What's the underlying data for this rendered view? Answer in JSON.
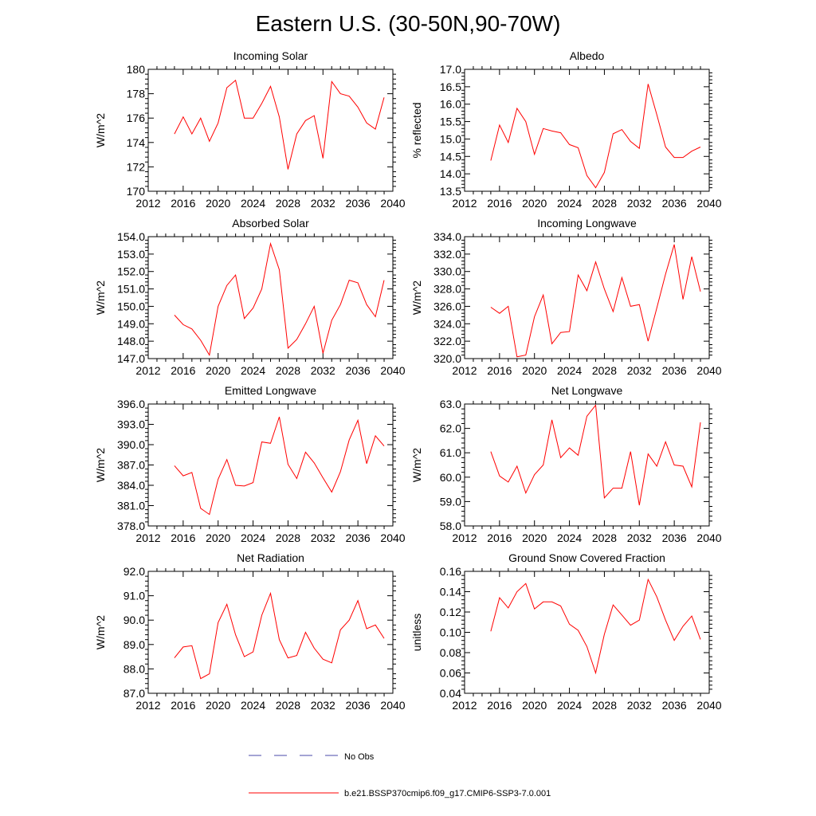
{
  "title": "Eastern U.S. (30-50N,90-70W)",
  "colors": {
    "series": "#ff0000",
    "obs": "#4a4aaa",
    "axis": "#000000"
  },
  "legend": {
    "obs_label": "No Obs",
    "model_label": "b.e21.BSSP370cmip6.f09_g17.CMIP6-SSP3-7.0.001"
  },
  "chart_data": [
    {
      "type": "line",
      "title": "Incoming Solar",
      "ylabel": "W/m^2",
      "xlabel": "",
      "xlim": [
        2012,
        2040
      ],
      "ylim": [
        170,
        180
      ],
      "xticks": [
        2012,
        2016,
        2020,
        2024,
        2028,
        2032,
        2036,
        2040
      ],
      "xtick_labels": [
        "2012",
        "2016",
        "2020",
        "2024",
        "2028",
        "2032",
        "2036",
        "2040"
      ],
      "yticks": [
        170,
        172,
        174,
        176,
        178,
        180
      ],
      "ytick_labels": [
        "170",
        "172",
        "174",
        "176",
        "178",
        "180"
      ],
      "x": [
        2015,
        2016,
        2017,
        2018,
        2019,
        2020,
        2021,
        2022,
        2023,
        2024,
        2025,
        2026,
        2027,
        2028,
        2029,
        2030,
        2031,
        2032,
        2033,
        2034,
        2035,
        2036,
        2037,
        2038,
        2039
      ],
      "series": [
        {
          "name": "b.e21.BSSP370cmip6.f09_g17.CMIP6-SSP3-7.0.001",
          "values": [
            174.7,
            176.1,
            174.7,
            176.0,
            174.1,
            175.6,
            178.5,
            179.1,
            176.0,
            176.0,
            177.2,
            178.6,
            176.1,
            171.8,
            174.7,
            175.8,
            176.2,
            172.7,
            179.0,
            178.0,
            177.8,
            176.9,
            175.6,
            175.1,
            177.7
          ]
        }
      ]
    },
    {
      "type": "line",
      "title": "Albedo",
      "ylabel": "% reflected",
      "xlabel": "",
      "xlim": [
        2012,
        2040
      ],
      "ylim": [
        13.5,
        17.0
      ],
      "xticks": [
        2012,
        2016,
        2020,
        2024,
        2028,
        2032,
        2036,
        2040
      ],
      "xtick_labels": [
        "2012",
        "2016",
        "2020",
        "2024",
        "2028",
        "2032",
        "2036",
        "2040"
      ],
      "yticks": [
        13.5,
        14.0,
        14.5,
        15.0,
        15.5,
        16.0,
        16.5,
        17.0
      ],
      "ytick_labels": [
        "13.5",
        "14.0",
        "14.5",
        "15.0",
        "15.5",
        "16.0",
        "16.5",
        "17.0"
      ],
      "x": [
        2015,
        2016,
        2017,
        2018,
        2019,
        2020,
        2021,
        2022,
        2023,
        2024,
        2025,
        2026,
        2027,
        2028,
        2029,
        2030,
        2031,
        2032,
        2033,
        2034,
        2035,
        2036,
        2037,
        2038,
        2039
      ],
      "series": [
        {
          "name": "b.e21.BSSP370cmip6.f09_g17.CMIP6-SSP3-7.0.001",
          "values": [
            14.38,
            15.4,
            14.9,
            15.88,
            15.5,
            14.56,
            15.3,
            15.23,
            15.18,
            14.84,
            14.75,
            13.95,
            13.6,
            14.04,
            15.15,
            15.27,
            14.93,
            14.73,
            16.58,
            15.7,
            14.77,
            14.47,
            14.47,
            14.65,
            14.77
          ]
        }
      ]
    },
    {
      "type": "line",
      "title": "Absorbed Solar",
      "ylabel": "W/m^2",
      "xlabel": "",
      "xlim": [
        2012,
        2040
      ],
      "ylim": [
        147.0,
        154.0
      ],
      "xticks": [
        2012,
        2016,
        2020,
        2024,
        2028,
        2032,
        2036,
        2040
      ],
      "xtick_labels": [
        "2012",
        "2016",
        "2020",
        "2024",
        "2028",
        "2032",
        "2036",
        "2040"
      ],
      "yticks": [
        147,
        148,
        149,
        150,
        151,
        152,
        153,
        154
      ],
      "ytick_labels": [
        "147.0",
        "148.0",
        "149.0",
        "150.0",
        "151.0",
        "152.0",
        "153.0",
        "154.0"
      ],
      "x": [
        2015,
        2016,
        2017,
        2018,
        2019,
        2020,
        2021,
        2022,
        2023,
        2024,
        2025,
        2026,
        2027,
        2028,
        2029,
        2030,
        2031,
        2032,
        2033,
        2034,
        2035,
        2036,
        2037,
        2038,
        2039
      ],
      "series": [
        {
          "name": "b.e21.BSSP370cmip6.f09_g17.CMIP6-SSP3-7.0.001",
          "values": [
            149.5,
            148.95,
            148.7,
            148.05,
            147.2,
            150.0,
            151.2,
            151.8,
            149.3,
            149.9,
            151.0,
            153.6,
            152.1,
            147.6,
            148.1,
            149.0,
            150.0,
            147.3,
            149.2,
            150.1,
            151.5,
            151.35,
            150.1,
            149.4,
            151.5
          ]
        }
      ]
    },
    {
      "type": "line",
      "title": "Incoming Longwave",
      "ylabel": "W/m^2",
      "xlabel": "",
      "xlim": [
        2012,
        2040
      ],
      "ylim": [
        320.0,
        334.0
      ],
      "xticks": [
        2012,
        2016,
        2020,
        2024,
        2028,
        2032,
        2036,
        2040
      ],
      "xtick_labels": [
        "2012",
        "2016",
        "2020",
        "2024",
        "2028",
        "2032",
        "2036",
        "2040"
      ],
      "yticks": [
        320,
        322,
        324,
        326,
        328,
        330,
        332,
        334
      ],
      "ytick_labels": [
        "320.0",
        "322.0",
        "324.0",
        "326.0",
        "328.0",
        "330.0",
        "332.0",
        "334.0"
      ],
      "x": [
        2015,
        2016,
        2017,
        2018,
        2019,
        2020,
        2021,
        2022,
        2023,
        2024,
        2025,
        2026,
        2027,
        2028,
        2029,
        2030,
        2031,
        2032,
        2033,
        2034,
        2035,
        2036,
        2037,
        2038,
        2039
      ],
      "series": [
        {
          "name": "b.e21.BSSP370cmip6.f09_g17.CMIP6-SSP3-7.0.001",
          "values": [
            325.9,
            325.2,
            326.0,
            320.2,
            320.4,
            324.8,
            327.3,
            321.7,
            323.0,
            323.1,
            329.6,
            327.8,
            331.1,
            328.0,
            325.4,
            329.3,
            326.0,
            326.2,
            322.0,
            325.8,
            329.7,
            333.1,
            326.8,
            331.7,
            327.7
          ]
        }
      ]
    },
    {
      "type": "line",
      "title": "Emitted Longwave",
      "ylabel": "W/m^2",
      "xlabel": "",
      "xlim": [
        2012,
        2040
      ],
      "ylim": [
        378.0,
        396.0
      ],
      "xticks": [
        2012,
        2016,
        2020,
        2024,
        2028,
        2032,
        2036,
        2040
      ],
      "xtick_labels": [
        "2012",
        "2016",
        "2020",
        "2024",
        "2028",
        "2032",
        "2036",
        "2040"
      ],
      "yticks": [
        378,
        381,
        384,
        387,
        390,
        393,
        396
      ],
      "ytick_labels": [
        "378.0",
        "381.0",
        "384.0",
        "387.0",
        "390.0",
        "393.0",
        "396.0"
      ],
      "x": [
        2015,
        2016,
        2017,
        2018,
        2019,
        2020,
        2021,
        2022,
        2023,
        2024,
        2025,
        2026,
        2027,
        2028,
        2029,
        2030,
        2031,
        2032,
        2033,
        2034,
        2035,
        2036,
        2037,
        2038,
        2039
      ],
      "series": [
        {
          "name": "b.e21.BSSP370cmip6.f09_g17.CMIP6-SSP3-7.0.001",
          "values": [
            386.9,
            385.4,
            385.9,
            380.6,
            379.7,
            384.9,
            387.8,
            384.0,
            383.9,
            384.4,
            390.4,
            390.2,
            394.1,
            387.1,
            385.0,
            388.9,
            387.3,
            385.1,
            383.0,
            386.0,
            390.7,
            393.6,
            387.2,
            391.3,
            389.8
          ]
        }
      ]
    },
    {
      "type": "line",
      "title": "Net Longwave",
      "ylabel": "W/m^2",
      "xlabel": "",
      "xlim": [
        2012,
        2040
      ],
      "ylim": [
        58.0,
        63.0
      ],
      "xticks": [
        2012,
        2016,
        2020,
        2024,
        2028,
        2032,
        2036,
        2040
      ],
      "xtick_labels": [
        "2012",
        "2016",
        "2020",
        "2024",
        "2028",
        "2032",
        "2036",
        "2040"
      ],
      "yticks": [
        58,
        59,
        60,
        61,
        62,
        63
      ],
      "ytick_labels": [
        "58.0",
        "59.0",
        "60.0",
        "61.0",
        "62.0",
        "63.0"
      ],
      "x": [
        2015,
        2016,
        2017,
        2018,
        2019,
        2020,
        2021,
        2022,
        2023,
        2024,
        2025,
        2026,
        2027,
        2028,
        2029,
        2030,
        2031,
        2032,
        2033,
        2034,
        2035,
        2036,
        2037,
        2038,
        2039
      ],
      "series": [
        {
          "name": "b.e21.BSSP370cmip6.f09_g17.CMIP6-SSP3-7.0.001",
          "values": [
            61.05,
            60.05,
            59.8,
            60.45,
            59.35,
            60.1,
            60.5,
            62.35,
            60.8,
            61.2,
            60.9,
            62.5,
            62.95,
            59.15,
            59.55,
            59.55,
            61.05,
            58.85,
            60.95,
            60.45,
            61.45,
            60.5,
            60.45,
            59.6,
            62.25
          ]
        }
      ]
    },
    {
      "type": "line",
      "title": "Net Radiation",
      "ylabel": "W/m^2",
      "xlabel": "",
      "xlim": [
        2012,
        2040
      ],
      "ylim": [
        87.0,
        92.0
      ],
      "xticks": [
        2012,
        2016,
        2020,
        2024,
        2028,
        2032,
        2036,
        2040
      ],
      "xtick_labels": [
        "2012",
        "2016",
        "2020",
        "2024",
        "2028",
        "2032",
        "2036",
        "2040"
      ],
      "yticks": [
        87,
        88,
        89,
        90,
        91,
        92
      ],
      "ytick_labels": [
        "87.0",
        "88.0",
        "89.0",
        "90.0",
        "91.0",
        "92.0"
      ],
      "x": [
        2015,
        2016,
        2017,
        2018,
        2019,
        2020,
        2021,
        2022,
        2023,
        2024,
        2025,
        2026,
        2027,
        2028,
        2029,
        2030,
        2031,
        2032,
        2033,
        2034,
        2035,
        2036,
        2037,
        2038,
        2039
      ],
      "series": [
        {
          "name": "b.e21.BSSP370cmip6.f09_g17.CMIP6-SSP3-7.0.001",
          "values": [
            88.45,
            88.9,
            88.95,
            87.6,
            87.8,
            89.9,
            90.65,
            89.4,
            88.5,
            88.7,
            90.2,
            91.1,
            89.2,
            88.45,
            88.55,
            89.5,
            88.85,
            88.4,
            88.25,
            89.6,
            90.0,
            90.8,
            89.65,
            89.8,
            89.25
          ]
        }
      ]
    },
    {
      "type": "line",
      "title": "Ground Snow Covered Fraction",
      "ylabel": "unitless",
      "xlabel": "",
      "xlim": [
        2012,
        2040
      ],
      "ylim": [
        0.04,
        0.16
      ],
      "xticks": [
        2012,
        2016,
        2020,
        2024,
        2028,
        2032,
        2036,
        2040
      ],
      "xtick_labels": [
        "2012",
        "2016",
        "2020",
        "2024",
        "2028",
        "2032",
        "2036",
        "2040"
      ],
      "yticks": [
        0.04,
        0.06,
        0.08,
        0.1,
        0.12,
        0.14,
        0.16
      ],
      "ytick_labels": [
        "0.04",
        "0.06",
        "0.08",
        "0.10",
        "0.12",
        "0.14",
        "0.16"
      ],
      "x": [
        2015,
        2016,
        2017,
        2018,
        2019,
        2020,
        2021,
        2022,
        2023,
        2024,
        2025,
        2026,
        2027,
        2028,
        2029,
        2030,
        2031,
        2032,
        2033,
        2034,
        2035,
        2036,
        2037,
        2038,
        2039
      ],
      "series": [
        {
          "name": "b.e21.BSSP370cmip6.f09_g17.CMIP6-SSP3-7.0.001",
          "values": [
            0.101,
            0.134,
            0.124,
            0.14,
            0.148,
            0.123,
            0.13,
            0.13,
            0.126,
            0.108,
            0.102,
            0.086,
            0.06,
            0.098,
            0.127,
            0.117,
            0.107,
            0.112,
            0.152,
            0.135,
            0.112,
            0.092,
            0.106,
            0.116,
            0.093
          ]
        }
      ]
    }
  ]
}
